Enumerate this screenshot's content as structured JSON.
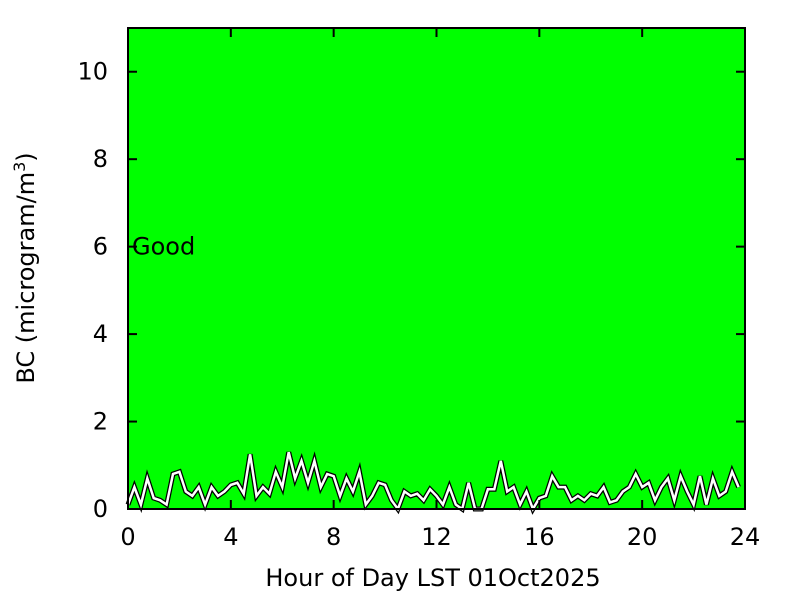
{
  "chart_data": {
    "type": "line",
    "title": "",
    "xlabel": "Hour of Day LST 01Oct2025",
    "ylabel_main": "BC (microgram/m",
    "ylabel_sup": "3",
    "ylabel_close": ")",
    "xlim": [
      0,
      24
    ],
    "ylim": [
      0,
      11
    ],
    "xticks": [
      0,
      4,
      8,
      12,
      16,
      20,
      24
    ],
    "yticks": [
      0,
      2,
      4,
      6,
      8,
      10
    ],
    "grid": false,
    "background_color": "#00ff00",
    "line_color": "#ffffff",
    "annotation": {
      "text": "Good",
      "x": 0,
      "y": 6
    },
    "series": [
      {
        "x": [
          0,
          0.25,
          0.5,
          0.75,
          1,
          1.25,
          1.5,
          1.75,
          2,
          2.25,
          2.5,
          2.75,
          3,
          3.25,
          3.5,
          3.75,
          4,
          4.25,
          4.5,
          4.75,
          5,
          5.25,
          5.5,
          5.75,
          6,
          6.25,
          6.5,
          6.75,
          7,
          7.25,
          7.5,
          7.75,
          8,
          8.25,
          8.5,
          8.75,
          9,
          9.25,
          9.5,
          9.75,
          10,
          10.25,
          10.5,
          10.75,
          11,
          11.25,
          11.5,
          11.75,
          12,
          12.25,
          12.5,
          12.75,
          13,
          13.25,
          13.5,
          13.75,
          14,
          14.25,
          14.5,
          14.75,
          15,
          15.25,
          15.5,
          15.75,
          16,
          16.25,
          16.5,
          16.75,
          17,
          17.25,
          17.5,
          17.75,
          18,
          18.25,
          18.5,
          18.75,
          19,
          19.25,
          19.5,
          19.75,
          20,
          20.25,
          20.5,
          20.75,
          21,
          21.25,
          21.5,
          21.75,
          22,
          22.25,
          22.5,
          22.75,
          23,
          23.25,
          23.5,
          23.75
        ],
        "y": [
          0.1,
          0.5,
          0.1,
          0.7,
          0.25,
          0.2,
          0.1,
          0.8,
          0.85,
          0.4,
          0.3,
          0.5,
          0.1,
          0.5,
          0.3,
          0.4,
          0.55,
          0.6,
          0.35,
          1.25,
          0.3,
          0.5,
          0.35,
          0.85,
          0.5,
          1.3,
          0.7,
          1.1,
          0.6,
          1.1,
          0.5,
          0.8,
          0.75,
          0.3,
          0.7,
          0.4,
          0.85,
          0.1,
          0.3,
          0.6,
          0.55,
          0.2,
          0,
          0.4,
          0.3,
          0.35,
          0.2,
          0.45,
          0.3,
          0.1,
          0.5,
          0.1,
          0,
          0.6,
          0,
          0,
          0.45,
          0.45,
          1.1,
          0.4,
          0.5,
          0.1,
          0.4,
          0,
          0.25,
          0.3,
          0.75,
          0.5,
          0.5,
          0.2,
          0.3,
          0.2,
          0.35,
          0.3,
          0.5,
          0.15,
          0.2,
          0.4,
          0.5,
          0.8,
          0.5,
          0.6,
          0.2,
          0.5,
          0.7,
          0.2,
          0.75,
          0.4,
          0.1,
          0.75,
          0.1,
          0.7,
          0.3,
          0.4,
          0.85,
          0.5
        ]
      }
    ]
  }
}
